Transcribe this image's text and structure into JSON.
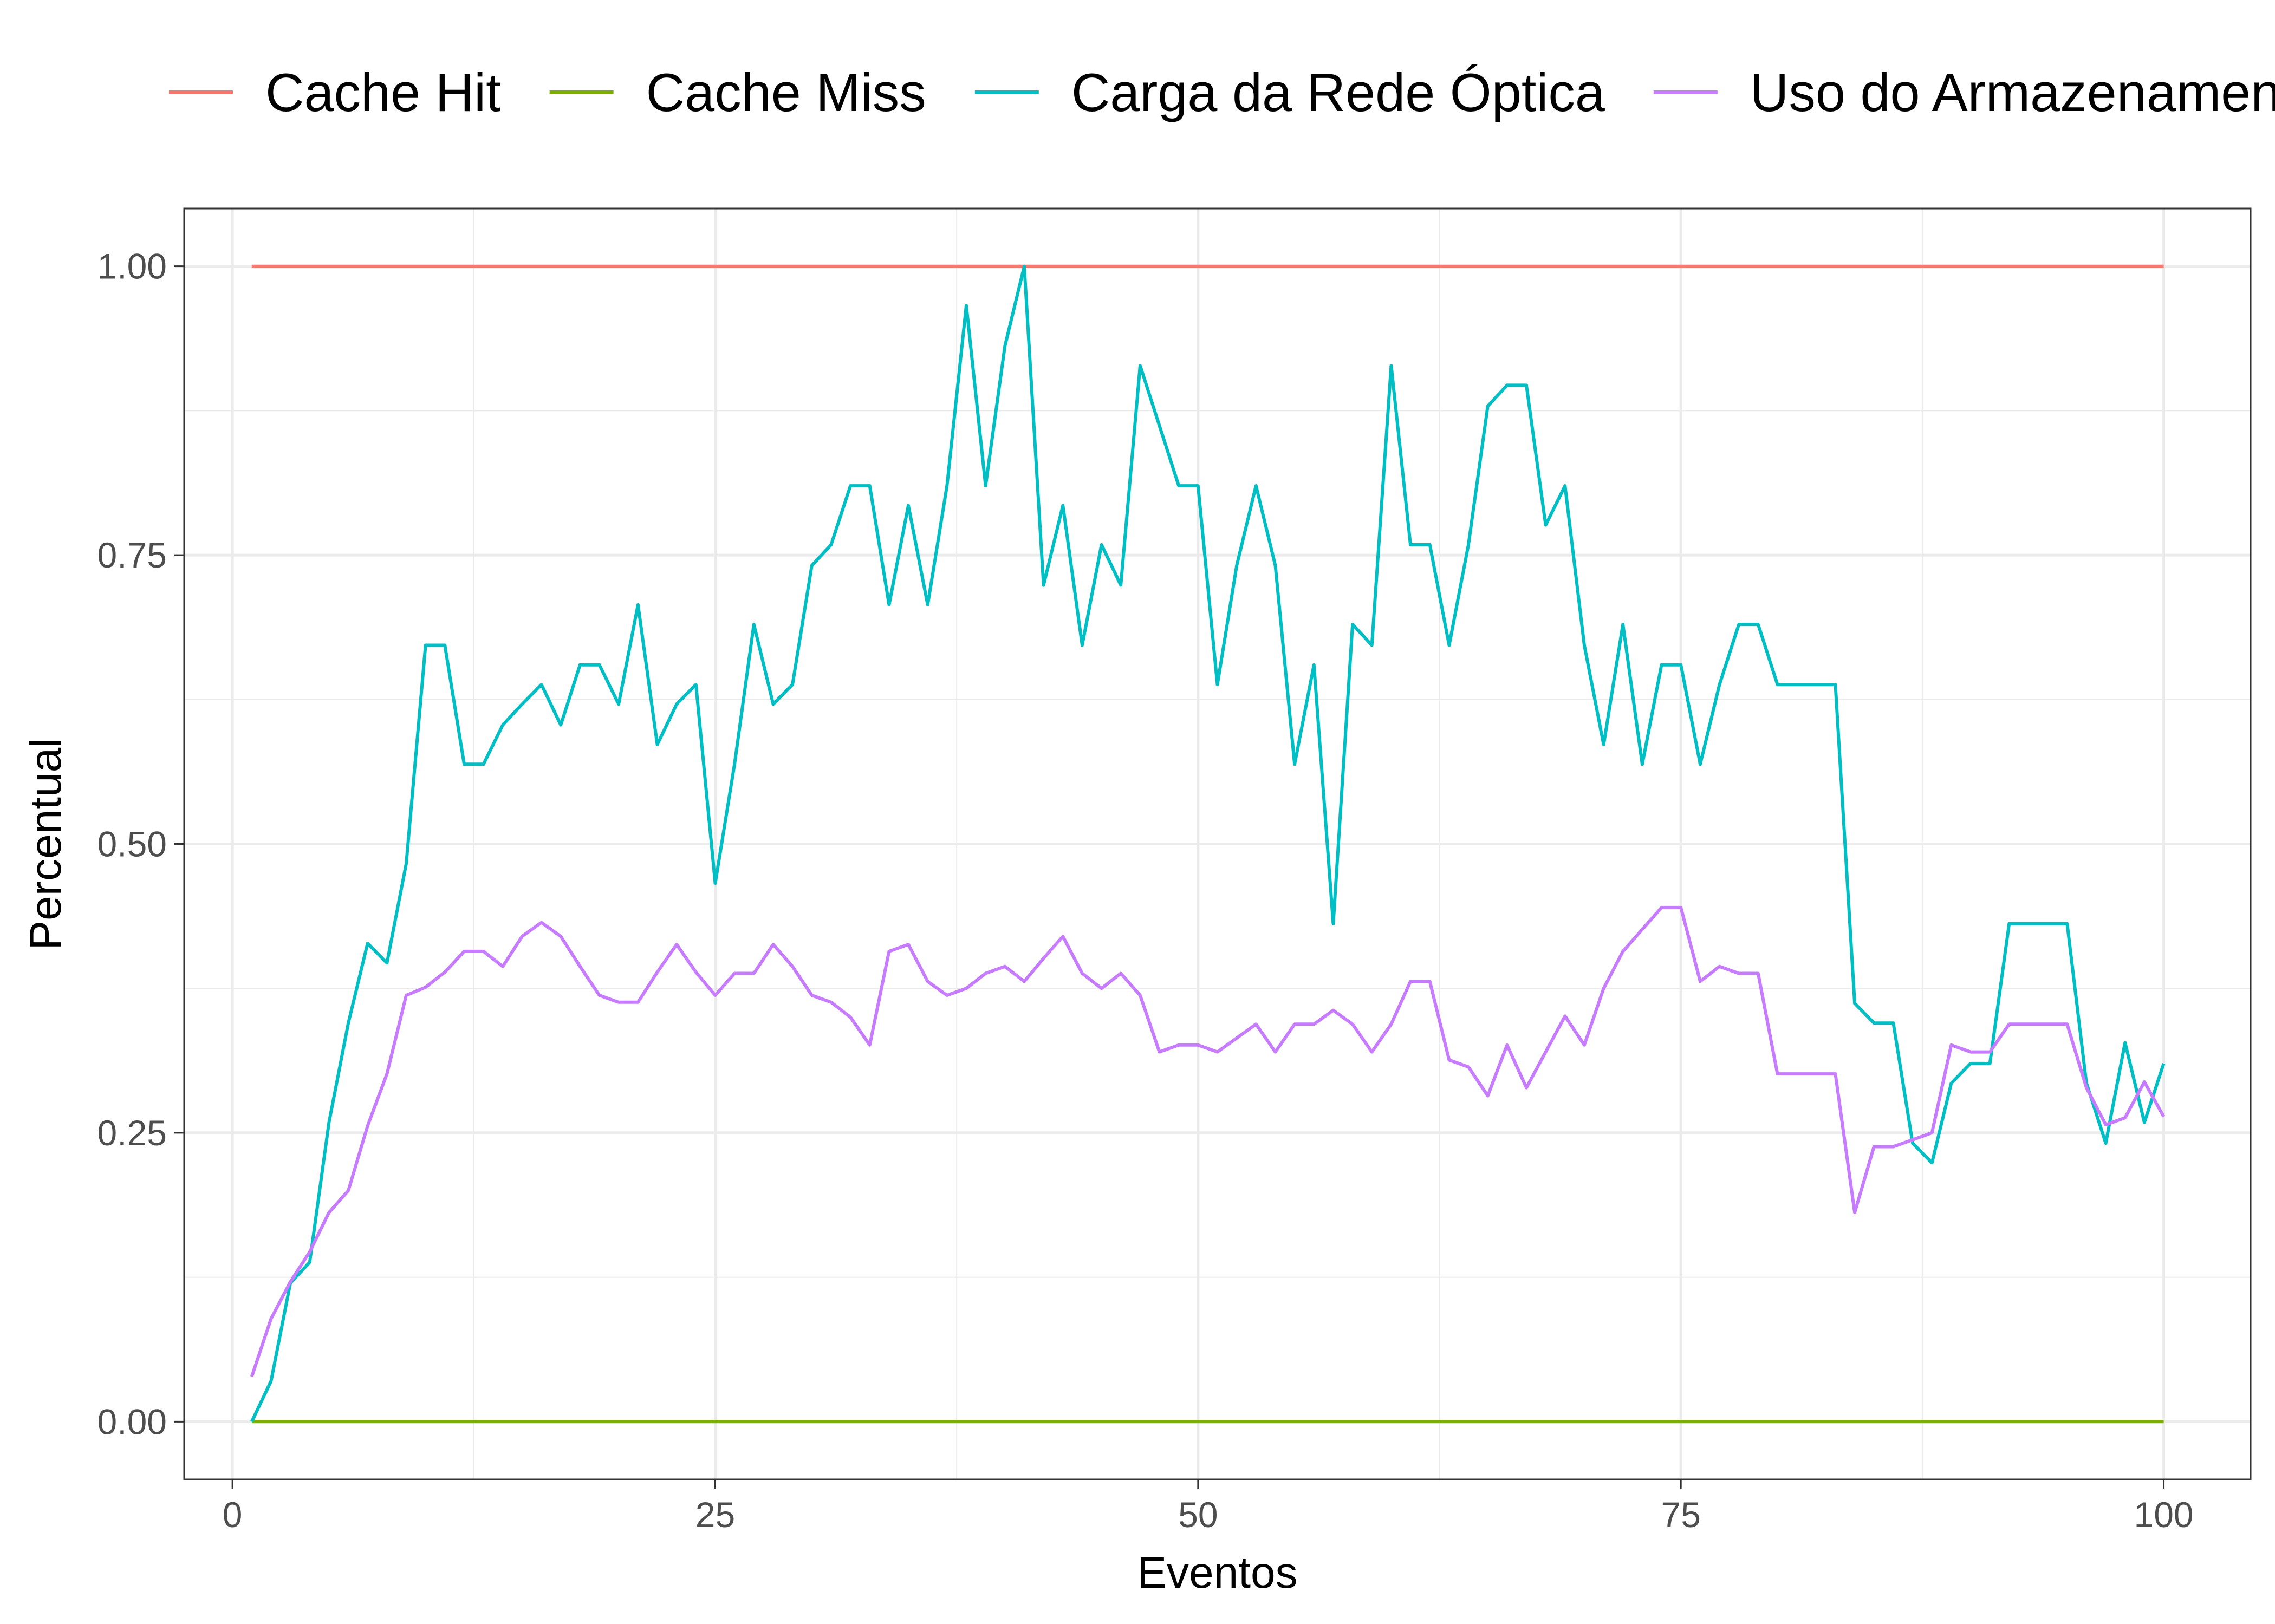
{
  "chart_data": {
    "type": "line",
    "xlabel": "Eventos",
    "ylabel": "Percentual",
    "xlim": [
      -2.5,
      104.5
    ],
    "ylim": [
      -0.05,
      1.05
    ],
    "x_ticks": [
      0,
      25,
      50,
      75,
      100
    ],
    "x_tick_labels": [
      "0",
      "25",
      "50",
      "75",
      "100"
    ],
    "y_ticks": [
      0,
      0.25,
      0.5,
      0.75,
      1
    ],
    "y_tick_labels": [
      "0.00",
      "0.25",
      "0.50",
      "0.75",
      "1.00"
    ],
    "grid": true,
    "legend_position": "top",
    "x": [
      1,
      2,
      3,
      4,
      5,
      6,
      7,
      8,
      9,
      10,
      11,
      12,
      13,
      14,
      15,
      16,
      17,
      18,
      19,
      20,
      21,
      22,
      23,
      24,
      25,
      26,
      27,
      28,
      29,
      30,
      31,
      32,
      33,
      34,
      35,
      36,
      37,
      38,
      39,
      40,
      41,
      42,
      43,
      44,
      45,
      46,
      47,
      48,
      49,
      50,
      51,
      52,
      53,
      54,
      55,
      56,
      57,
      58,
      59,
      60,
      61,
      62,
      63,
      64,
      65,
      66,
      67,
      68,
      69,
      70,
      71,
      72,
      73,
      74,
      75,
      76,
      77,
      78,
      79,
      80,
      81,
      82,
      83,
      84,
      85,
      86,
      87,
      88,
      89,
      90,
      91,
      92,
      93,
      94,
      95,
      96,
      97,
      98,
      99,
      100
    ],
    "series": [
      {
        "name": "Cache Hit",
        "color": "#F8766D",
        "values": [
          1,
          1,
          1,
          1,
          1,
          1,
          1,
          1,
          1,
          1,
          1,
          1,
          1,
          1,
          1,
          1,
          1,
          1,
          1,
          1,
          1,
          1,
          1,
          1,
          1,
          1,
          1,
          1,
          1,
          1,
          1,
          1,
          1,
          1,
          1,
          1,
          1,
          1,
          1,
          1,
          1,
          1,
          1,
          1,
          1,
          1,
          1,
          1,
          1,
          1,
          1,
          1,
          1,
          1,
          1,
          1,
          1,
          1,
          1,
          1,
          1,
          1,
          1,
          1,
          1,
          1,
          1,
          1,
          1,
          1,
          1,
          1,
          1,
          1,
          1,
          1,
          1,
          1,
          1,
          1,
          1,
          1,
          1,
          1,
          1,
          1,
          1,
          1,
          1,
          1,
          1,
          1,
          1,
          1,
          1,
          1,
          1,
          1,
          1,
          1
        ]
      },
      {
        "name": "Cache Miss",
        "color": "#7CAE00",
        "values": [
          0,
          0,
          0,
          0,
          0,
          0,
          0,
          0,
          0,
          0,
          0,
          0,
          0,
          0,
          0,
          0,
          0,
          0,
          0,
          0,
          0,
          0,
          0,
          0,
          0,
          0,
          0,
          0,
          0,
          0,
          0,
          0,
          0,
          0,
          0,
          0,
          0,
          0,
          0,
          0,
          0,
          0,
          0,
          0,
          0,
          0,
          0,
          0,
          0,
          0,
          0,
          0,
          0,
          0,
          0,
          0,
          0,
          0,
          0,
          0,
          0,
          0,
          0,
          0,
          0,
          0,
          0,
          0,
          0,
          0,
          0,
          0,
          0,
          0,
          0,
          0,
          0,
          0,
          0,
          0,
          0,
          0,
          0,
          0,
          0,
          0,
          0,
          0,
          0,
          0,
          0,
          0,
          0,
          0,
          0,
          0,
          0,
          0,
          0,
          0
        ]
      },
      {
        "name": "Carga da Rede Óptica",
        "color": "#00BFC4",
        "values": [
          0,
          0.035,
          0.12,
          0.138,
          0.259,
          0.345,
          0.414,
          0.397,
          0.483,
          0.672,
          0.672,
          0.569,
          0.569,
          0.603,
          0.621,
          0.638,
          0.603,
          0.655,
          0.655,
          0.621,
          0.707,
          0.586,
          0.621,
          0.638,
          0.466,
          0.569,
          0.69,
          0.621,
          0.638,
          0.741,
          0.759,
          0.81,
          0.81,
          0.707,
          0.793,
          0.707,
          0.81,
          0.966,
          0.81,
          0.931,
          1.0,
          0.724,
          0.793,
          0.672,
          0.759,
          0.724,
          0.914,
          0.862,
          0.81,
          0.81,
          0.638,
          0.741,
          0.81,
          0.741,
          0.569,
          0.655,
          0.431,
          0.69,
          0.672,
          0.914,
          0.759,
          0.759,
          0.672,
          0.759,
          0.879,
          0.897,
          0.897,
          0.776,
          0.81,
          0.672,
          0.586,
          0.69,
          0.569,
          0.655,
          0.655,
          0.569,
          0.638,
          0.69,
          0.69,
          0.638,
          0.638,
          0.638,
          0.638,
          0.362,
          0.345,
          0.345,
          0.241,
          0.224,
          0.293,
          0.31,
          0.31,
          0.431,
          0.431,
          0.431,
          0.431,
          0.293,
          0.241,
          0.328,
          0.259,
          0.31
        ]
      },
      {
        "name": "Uso do Armazenamento",
        "color": "#C77CFF",
        "values": [
          0.039,
          0.089,
          0.121,
          0.147,
          0.181,
          0.2,
          0.256,
          0.301,
          0.369,
          0.376,
          0.389,
          0.407,
          0.407,
          0.394,
          0.42,
          0.432,
          0.42,
          0.394,
          0.369,
          0.363,
          0.363,
          0.389,
          0.413,
          0.389,
          0.369,
          0.388,
          0.388,
          0.413,
          0.394,
          0.369,
          0.363,
          0.35,
          0.326,
          0.407,
          0.413,
          0.381,
          0.369,
          0.375,
          0.388,
          0.394,
          0.381,
          0.401,
          0.42,
          0.388,
          0.375,
          0.388,
          0.369,
          0.32,
          0.326,
          0.326,
          0.32,
          0.332,
          0.344,
          0.32,
          0.344,
          0.344,
          0.356,
          0.344,
          0.32,
          0.344,
          0.381,
          0.381,
          0.313,
          0.307,
          0.282,
          0.326,
          0.289,
          0.32,
          0.351,
          0.326,
          0.375,
          0.407,
          0.426,
          0.445,
          0.445,
          0.381,
          0.394,
          0.388,
          0.388,
          0.301,
          0.301,
          0.301,
          0.301,
          0.181,
          0.238,
          0.238,
          0.244,
          0.25,
          0.326,
          0.32,
          0.32,
          0.344,
          0.344,
          0.344,
          0.344,
          0.289,
          0.257,
          0.263,
          0.294,
          0.264
        ]
      }
    ]
  }
}
